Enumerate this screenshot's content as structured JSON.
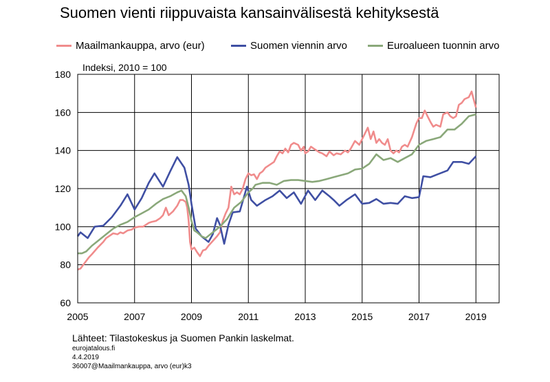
{
  "title": "Suomen vienti riippuvaista kansainvälisestä kehityksestä",
  "footer": {
    "source": "Lähteet: Tilastokeskus ja Suomen Pankin laskelmat.",
    "site": "eurojatalous.fi",
    "date": "4.4.2019",
    "code": "36007@Maailmankauppa, arvo (eur)k3"
  },
  "chart_data": {
    "type": "line",
    "title": "Suomen vienti riippuvaista kansainvälisestä kehityksestä",
    "unit_label": "Indeksi, 2010 = 100",
    "xlabel": "",
    "ylabel": "",
    "xlim": [
      2005,
      2020
    ],
    "ylim": [
      60,
      180
    ],
    "x_ticks": [
      2005,
      2007,
      2009,
      2011,
      2013,
      2015,
      2017,
      2019
    ],
    "y_ticks": [
      60,
      80,
      100,
      120,
      140,
      160,
      180
    ],
    "grid": true,
    "legend_position": "top",
    "series": [
      {
        "name": "Maailmankauppa, arvo (eur)",
        "color": "#f08c8c",
        "points": [
          [
            2005.0,
            77.5
          ],
          [
            2005.1,
            78
          ],
          [
            2005.25,
            81
          ],
          [
            2005.4,
            84
          ],
          [
            2005.5,
            85.5
          ],
          [
            2005.7,
            89
          ],
          [
            2005.9,
            92
          ],
          [
            2006.0,
            94
          ],
          [
            2006.1,
            95
          ],
          [
            2006.25,
            96.5
          ],
          [
            2006.4,
            96
          ],
          [
            2006.5,
            97
          ],
          [
            2006.6,
            96.5
          ],
          [
            2006.75,
            98
          ],
          [
            2006.9,
            98.5
          ],
          [
            2007.0,
            99.5
          ],
          [
            2007.15,
            100
          ],
          [
            2007.3,
            100
          ],
          [
            2007.5,
            102
          ],
          [
            2007.6,
            102.5
          ],
          [
            2007.75,
            103
          ],
          [
            2007.9,
            104.5
          ],
          [
            2008.0,
            106
          ],
          [
            2008.1,
            110
          ],
          [
            2008.2,
            106
          ],
          [
            2008.35,
            108
          ],
          [
            2008.5,
            111
          ],
          [
            2008.6,
            114
          ],
          [
            2008.7,
            114
          ],
          [
            2008.8,
            113
          ],
          [
            2008.85,
            110
          ],
          [
            2008.9,
            103
          ],
          [
            2008.95,
            92
          ],
          [
            2009.0,
            88
          ],
          [
            2009.1,
            89
          ],
          [
            2009.2,
            86.5
          ],
          [
            2009.3,
            84.5
          ],
          [
            2009.4,
            87.5
          ],
          [
            2009.5,
            88
          ],
          [
            2009.6,
            90
          ],
          [
            2009.75,
            92.5
          ],
          [
            2009.9,
            95
          ],
          [
            2010.0,
            97
          ],
          [
            2010.1,
            103
          ],
          [
            2010.2,
            107
          ],
          [
            2010.3,
            110
          ],
          [
            2010.4,
            121
          ],
          [
            2010.5,
            117
          ],
          [
            2010.6,
            118
          ],
          [
            2010.7,
            117
          ],
          [
            2010.8,
            120
          ],
          [
            2010.9,
            125
          ],
          [
            2011.0,
            128
          ],
          [
            2011.1,
            127
          ],
          [
            2011.2,
            127.5
          ],
          [
            2011.3,
            125
          ],
          [
            2011.4,
            128
          ],
          [
            2011.5,
            129
          ],
          [
            2011.6,
            131
          ],
          [
            2011.75,
            132.5
          ],
          [
            2011.9,
            134
          ],
          [
            2012.0,
            137
          ],
          [
            2012.1,
            139.5
          ],
          [
            2012.2,
            138.5
          ],
          [
            2012.3,
            141
          ],
          [
            2012.4,
            139
          ],
          [
            2012.5,
            143
          ],
          [
            2012.6,
            144
          ],
          [
            2012.75,
            143
          ],
          [
            2012.85,
            140
          ],
          [
            2012.95,
            142
          ],
          [
            2013.0,
            138.5
          ],
          [
            2013.1,
            139.5
          ],
          [
            2013.2,
            142
          ],
          [
            2013.3,
            141
          ],
          [
            2013.4,
            140
          ],
          [
            2013.5,
            139
          ],
          [
            2013.6,
            138.5
          ],
          [
            2013.75,
            137
          ],
          [
            2013.85,
            139.5
          ],
          [
            2014.0,
            137.5
          ],
          [
            2014.1,
            138.5
          ],
          [
            2014.25,
            138
          ],
          [
            2014.4,
            140
          ],
          [
            2014.5,
            139
          ],
          [
            2014.6,
            141
          ],
          [
            2014.75,
            145
          ],
          [
            2014.9,
            143
          ],
          [
            2015.0,
            146
          ],
          [
            2015.1,
            149
          ],
          [
            2015.2,
            152
          ],
          [
            2015.3,
            146
          ],
          [
            2015.4,
            150
          ],
          [
            2015.5,
            144
          ],
          [
            2015.6,
            146
          ],
          [
            2015.7,
            144
          ],
          [
            2015.8,
            143
          ],
          [
            2015.9,
            146
          ],
          [
            2016.0,
            140
          ],
          [
            2016.1,
            138.5
          ],
          [
            2016.2,
            140
          ],
          [
            2016.3,
            139
          ],
          [
            2016.4,
            142
          ],
          [
            2016.5,
            143
          ],
          [
            2016.6,
            142
          ],
          [
            2016.75,
            147
          ],
          [
            2016.9,
            154
          ],
          [
            2017.0,
            157
          ],
          [
            2017.1,
            157
          ],
          [
            2017.2,
            161
          ],
          [
            2017.3,
            158
          ],
          [
            2017.4,
            155
          ],
          [
            2017.5,
            152.5
          ],
          [
            2017.6,
            153.5
          ],
          [
            2017.75,
            152.5
          ],
          [
            2017.85,
            159
          ],
          [
            2018.0,
            160
          ],
          [
            2018.1,
            158
          ],
          [
            2018.2,
            157
          ],
          [
            2018.3,
            158
          ],
          [
            2018.4,
            164
          ],
          [
            2018.5,
            165
          ],
          [
            2018.6,
            167
          ],
          [
            2018.75,
            168
          ],
          [
            2018.85,
            171
          ],
          [
            2018.9,
            168
          ],
          [
            2019.0,
            162.5
          ]
        ]
      },
      {
        "name": "Suomen viennin arvo",
        "color": "#3f4fa3",
        "points": [
          [
            2005.0,
            95
          ],
          [
            2005.1,
            97
          ],
          [
            2005.35,
            94
          ],
          [
            2005.6,
            100
          ],
          [
            2005.9,
            100.5
          ],
          [
            2006.2,
            105
          ],
          [
            2006.5,
            111
          ],
          [
            2006.75,
            117
          ],
          [
            2007.0,
            109
          ],
          [
            2007.25,
            115
          ],
          [
            2007.5,
            123
          ],
          [
            2007.7,
            128
          ],
          [
            2008.0,
            121
          ],
          [
            2008.25,
            129
          ],
          [
            2008.5,
            136.5
          ],
          [
            2008.75,
            131
          ],
          [
            2008.9,
            122
          ],
          [
            2009.0,
            112
          ],
          [
            2009.15,
            99
          ],
          [
            2009.35,
            95
          ],
          [
            2009.6,
            92
          ],
          [
            2009.75,
            96
          ],
          [
            2009.9,
            104.5
          ],
          [
            2010.0,
            101
          ],
          [
            2010.15,
            91
          ],
          [
            2010.3,
            101
          ],
          [
            2010.45,
            107.5
          ],
          [
            2010.7,
            108
          ],
          [
            2010.95,
            121
          ],
          [
            2011.1,
            114
          ],
          [
            2011.3,
            111
          ],
          [
            2011.6,
            114
          ],
          [
            2011.85,
            116
          ],
          [
            2012.1,
            119
          ],
          [
            2012.35,
            115
          ],
          [
            2012.6,
            118
          ],
          [
            2012.85,
            112
          ],
          [
            2013.1,
            119
          ],
          [
            2013.35,
            114
          ],
          [
            2013.6,
            119
          ],
          [
            2013.85,
            116
          ],
          [
            2014.0,
            114
          ],
          [
            2014.2,
            111
          ],
          [
            2014.45,
            114
          ],
          [
            2014.75,
            117
          ],
          [
            2015.0,
            112
          ],
          [
            2015.25,
            112.5
          ],
          [
            2015.5,
            114.5
          ],
          [
            2015.75,
            112
          ],
          [
            2016.0,
            112.5
          ],
          [
            2016.25,
            112
          ],
          [
            2016.5,
            116
          ],
          [
            2016.75,
            115
          ],
          [
            2017.0,
            115.5
          ],
          [
            2017.15,
            126.5
          ],
          [
            2017.4,
            126
          ],
          [
            2017.65,
            127.5
          ],
          [
            2018.0,
            129.5
          ],
          [
            2018.2,
            134
          ],
          [
            2018.5,
            134
          ],
          [
            2018.75,
            133
          ],
          [
            2019.0,
            137
          ]
        ]
      },
      {
        "name": "Euroalueen tuonnin arvo",
        "color": "#8aa87a",
        "points": [
          [
            2005.0,
            86
          ],
          [
            2005.15,
            86
          ],
          [
            2005.3,
            87
          ],
          [
            2005.5,
            90
          ],
          [
            2005.75,
            93
          ],
          [
            2006.0,
            96
          ],
          [
            2006.25,
            99
          ],
          [
            2006.5,
            101
          ],
          [
            2006.75,
            102.5
          ],
          [
            2007.0,
            105
          ],
          [
            2007.25,
            107
          ],
          [
            2007.5,
            109
          ],
          [
            2007.75,
            112
          ],
          [
            2008.0,
            114.5
          ],
          [
            2008.25,
            116
          ],
          [
            2008.5,
            118
          ],
          [
            2008.65,
            119
          ],
          [
            2008.8,
            116
          ],
          [
            2008.9,
            110
          ],
          [
            2009.0,
            103
          ],
          [
            2009.1,
            98
          ],
          [
            2009.2,
            97
          ],
          [
            2009.35,
            95
          ],
          [
            2009.5,
            94
          ],
          [
            2009.75,
            97
          ],
          [
            2010.0,
            100
          ],
          [
            2010.25,
            104
          ],
          [
            2010.5,
            110
          ],
          [
            2010.75,
            113
          ],
          [
            2011.0,
            118
          ],
          [
            2011.15,
            120
          ],
          [
            2011.25,
            122
          ],
          [
            2011.5,
            123
          ],
          [
            2011.75,
            123
          ],
          [
            2012.0,
            122
          ],
          [
            2012.25,
            124
          ],
          [
            2012.5,
            124.5
          ],
          [
            2012.75,
            124.5
          ],
          [
            2013.0,
            124
          ],
          [
            2013.25,
            123.5
          ],
          [
            2013.5,
            124
          ],
          [
            2013.75,
            125
          ],
          [
            2014.0,
            126
          ],
          [
            2014.25,
            127
          ],
          [
            2014.5,
            128
          ],
          [
            2014.75,
            130
          ],
          [
            2015.0,
            130.5
          ],
          [
            2015.25,
            133
          ],
          [
            2015.5,
            138
          ],
          [
            2015.75,
            135
          ],
          [
            2016.0,
            136
          ],
          [
            2016.25,
            134
          ],
          [
            2016.5,
            136
          ],
          [
            2016.75,
            138
          ],
          [
            2017.0,
            143
          ],
          [
            2017.25,
            145
          ],
          [
            2017.5,
            146
          ],
          [
            2017.75,
            147
          ],
          [
            2018.0,
            151
          ],
          [
            2018.25,
            151
          ],
          [
            2018.5,
            154
          ],
          [
            2018.75,
            158
          ],
          [
            2019.0,
            159
          ]
        ]
      }
    ]
  }
}
